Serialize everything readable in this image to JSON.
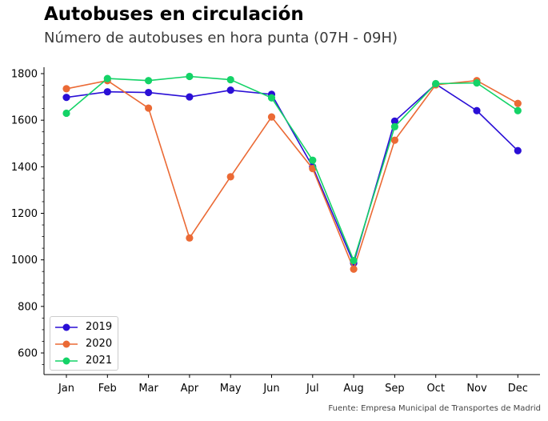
{
  "title": "Autobuses en circulación",
  "subtitle": "Número de autobuses en hora punta (07H - 09H)",
  "source": "Fuente: Empresa Municipal de Transportes de Madrid",
  "chart_data": {
    "type": "line",
    "title": "Autobuses en circulación",
    "subtitle": "Número de autobuses en hora punta (07H - 09H)",
    "xlabel": "",
    "ylabel": "",
    "categories": [
      "Jan",
      "Feb",
      "Mar",
      "Apr",
      "May",
      "Jun",
      "Jul",
      "Aug",
      "Sep",
      "Oct",
      "Nov",
      "Dec"
    ],
    "ylim": [
      500,
      1830
    ],
    "yticks": [
      600,
      800,
      1000,
      1200,
      1400,
      1600,
      1800
    ],
    "grid": false,
    "legend_position": "lower-left",
    "markers": true,
    "series": [
      {
        "name": "2019",
        "color": "#2a0fd6",
        "values": [
          1698,
          1722,
          1719,
          1700,
          1729,
          1711,
          1400,
          986,
          1596,
          1755,
          1641,
          1469
        ]
      },
      {
        "name": "2020",
        "color": "#eb6a35",
        "values": [
          1735,
          1770,
          1652,
          1094,
          1357,
          1614,
          1392,
          960,
          1514,
          1752,
          1770,
          1672
        ]
      },
      {
        "name": "2021",
        "color": "#14d367",
        "values": [
          1630,
          1779,
          1770,
          1788,
          1774,
          1696,
          1428,
          997,
          1572,
          1757,
          1760,
          1641
        ]
      }
    ]
  }
}
